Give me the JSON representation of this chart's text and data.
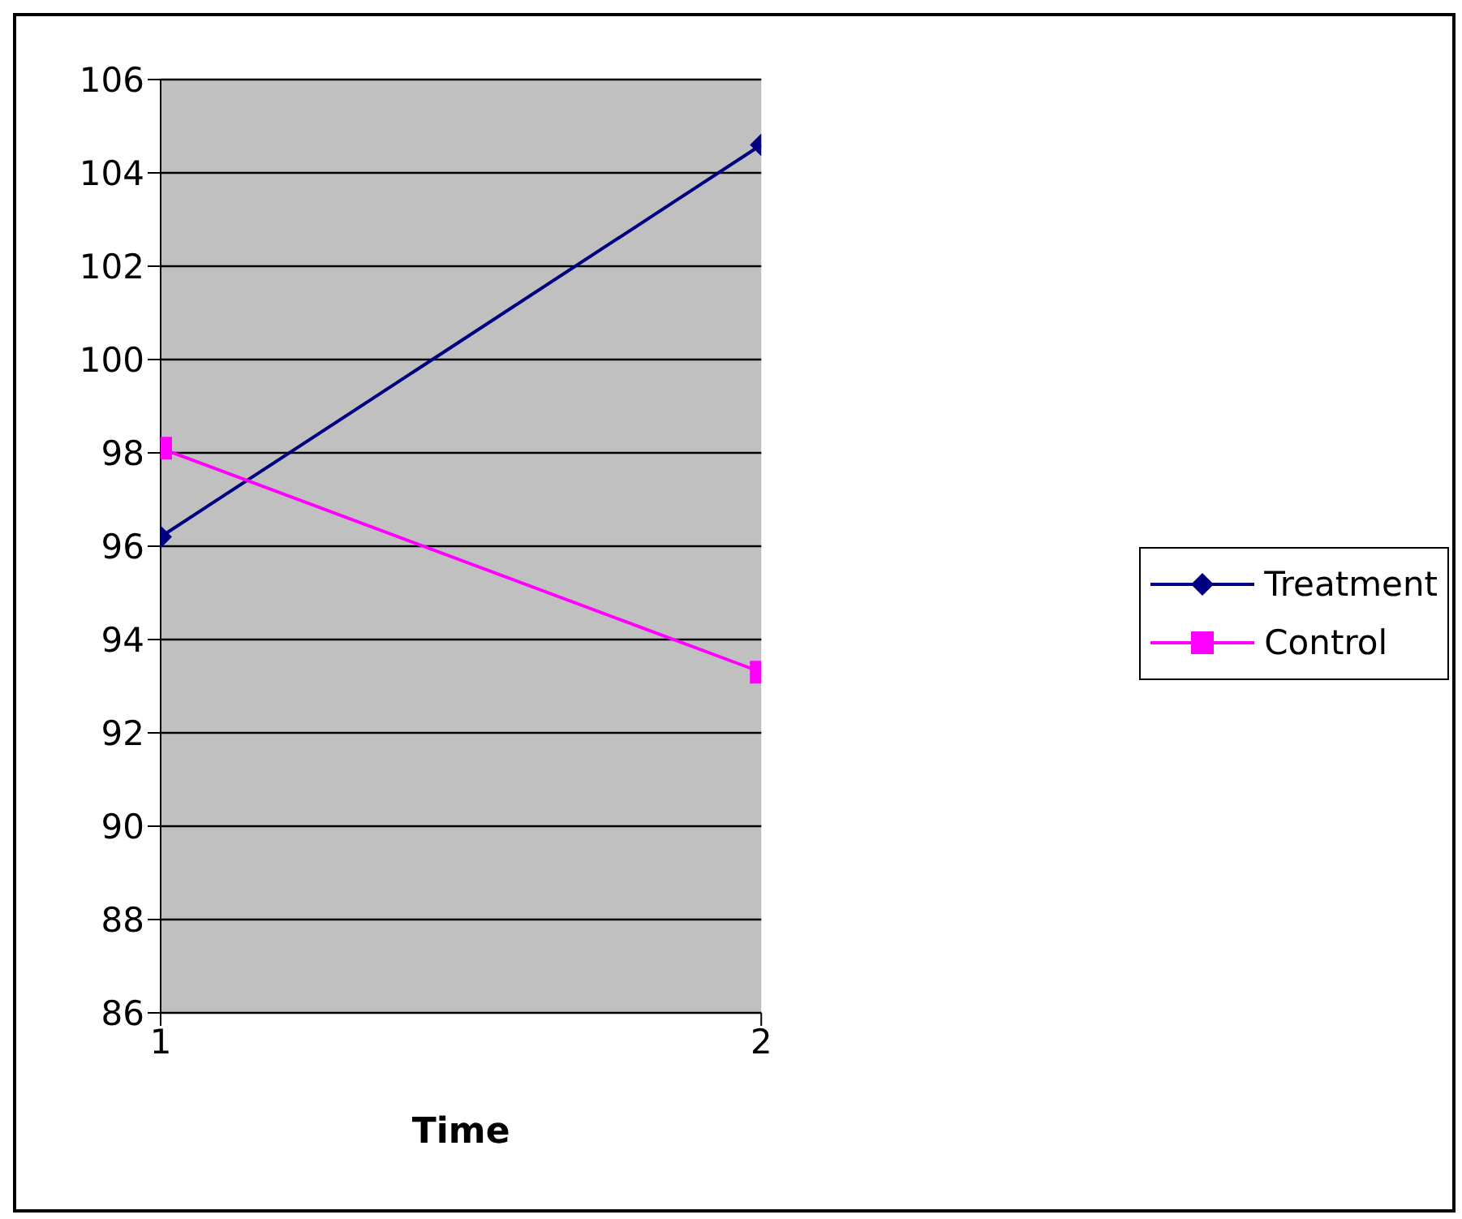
{
  "chart_data": {
    "type": "line",
    "xlabel": "Time",
    "x": [
      1,
      2
    ],
    "xlim": [
      1,
      2
    ],
    "xticks": [
      1,
      2
    ],
    "ylim": [
      86,
      106
    ],
    "yticks": [
      86,
      88,
      90,
      92,
      94,
      96,
      98,
      100,
      102,
      104,
      106
    ],
    "grid": "y",
    "legend": "right",
    "series": [
      {
        "name": "Treatment",
        "color": "#000080",
        "values": [
          96.2,
          104.6
        ],
        "marker": "diamond"
      },
      {
        "name": "Control",
        "color": "#ff00ff",
        "values": [
          98.1,
          93.3
        ],
        "marker": "square"
      }
    ]
  }
}
